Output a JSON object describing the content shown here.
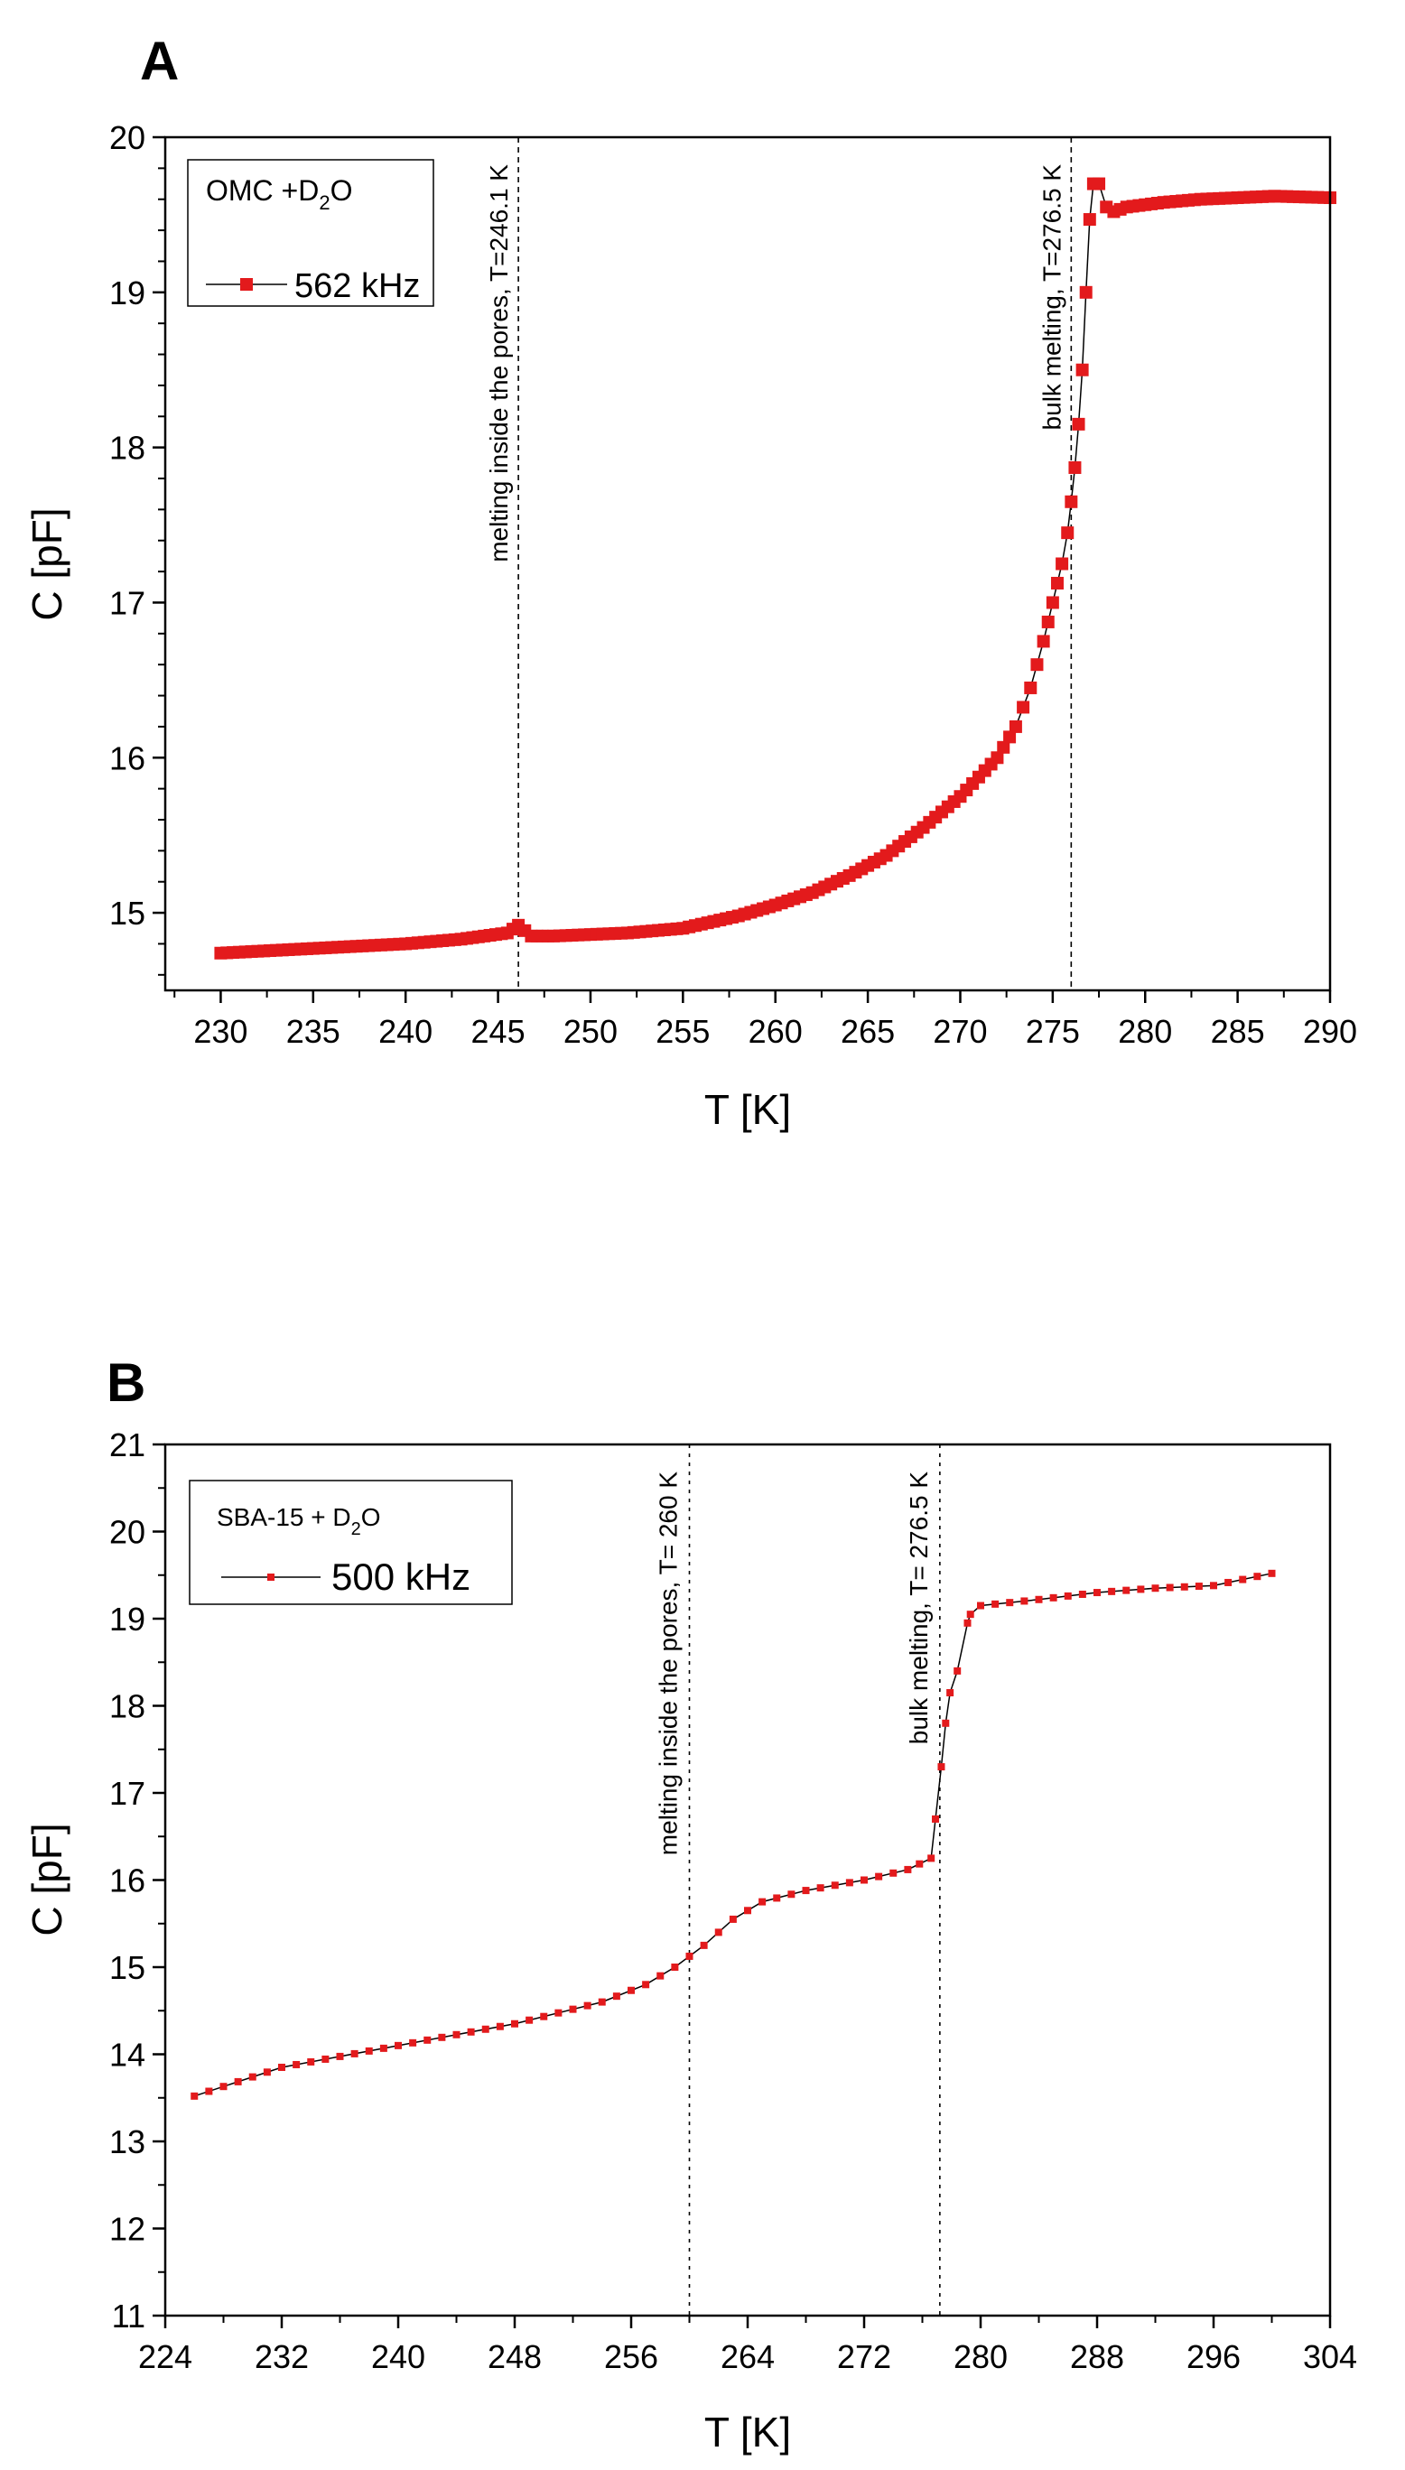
{
  "chart_data": [
    {
      "panel": "A",
      "type": "line",
      "xlabel": "T [K]",
      "ylabel": "C [pF]",
      "xlim": [
        227,
        290
      ],
      "ylim": [
        14.5,
        20
      ],
      "xticks": [
        "230",
        "235",
        "240",
        "245",
        "250",
        "255",
        "260",
        "265",
        "270",
        "275",
        "280",
        "285",
        "290"
      ],
      "yticks": [
        "15",
        "16",
        "17",
        "18",
        "19",
        "20"
      ],
      "legend": {
        "title": "OMC +D",
        "subscript": "2",
        "title_end": "O",
        "series": "562 kHz",
        "position": "top-left"
      },
      "annotations": [
        {
          "x": 246.1,
          "text": "melting inside the pores, T=246.1 K"
        },
        {
          "x": 276.0,
          "text": "bulk melting, T=276.5 K"
        }
      ],
      "series": [
        {
          "name": "562 kHz",
          "color": "#e31a1c",
          "marker_spacing": 0.33,
          "x": [
            230,
            235,
            240,
            243,
            245.5,
            246.1,
            246.8,
            248,
            252,
            255,
            258,
            260,
            262,
            264,
            266,
            268,
            270,
            272,
            273,
            273.8,
            274.5,
            275,
            275.5,
            275.8,
            276.0,
            276.2,
            276.4,
            276.6,
            276.8,
            277.0,
            277.2,
            277.5,
            277.9,
            278.3,
            279,
            281,
            283,
            285,
            287,
            290
          ],
          "y": [
            14.74,
            14.77,
            14.8,
            14.83,
            14.87,
            14.92,
            14.85,
            14.85,
            14.87,
            14.9,
            14.98,
            15.05,
            15.13,
            15.24,
            15.37,
            15.55,
            15.75,
            16.0,
            16.2,
            16.45,
            16.75,
            17.0,
            17.25,
            17.45,
            17.65,
            17.87,
            18.15,
            18.5,
            19.0,
            19.47,
            19.7,
            19.7,
            19.55,
            19.52,
            19.55,
            19.58,
            19.6,
            19.61,
            19.62,
            19.61
          ]
        }
      ]
    },
    {
      "panel": "B",
      "type": "line",
      "xlabel": "T [K]",
      "ylabel": "C [pF]",
      "xlim": [
        224,
        304
      ],
      "ylim": [
        11,
        21
      ],
      "xticks": [
        "224",
        "232",
        "240",
        "248",
        "256",
        "264",
        "272",
        "280",
        "288",
        "296",
        "304"
      ],
      "yticks": [
        "11",
        "12",
        "13",
        "14",
        "15",
        "16",
        "17",
        "18",
        "19",
        "20",
        "21"
      ],
      "legend": {
        "title": "SBA-15 + D",
        "subscript": "2",
        "title_end": "O",
        "series": "500 kHz",
        "position": "top-left"
      },
      "annotations": [
        {
          "x": 260,
          "text": "melting inside the pores, T= 260 K"
        },
        {
          "x": 277.2,
          "text": "bulk melting, T= 276.5 K"
        }
      ],
      "series": [
        {
          "name": "500 kHz",
          "color": "#e31a1c",
          "marker_spacing": 1.0,
          "x": [
            226,
            232,
            240,
            248,
            254,
            257,
            259,
            261,
            263,
            265,
            268,
            272,
            275,
            276.6,
            276.9,
            277.3,
            277.6,
            277.9,
            278.4,
            279.1,
            279.3,
            280,
            284,
            288,
            292,
            296,
            300
          ],
          "y": [
            13.52,
            13.85,
            14.1,
            14.35,
            14.6,
            14.8,
            15.0,
            15.25,
            15.55,
            15.75,
            15.88,
            16.0,
            16.12,
            16.25,
            16.7,
            17.3,
            17.8,
            18.15,
            18.4,
            18.95,
            19.05,
            19.15,
            19.22,
            19.3,
            19.35,
            19.38,
            19.52
          ]
        }
      ]
    }
  ]
}
